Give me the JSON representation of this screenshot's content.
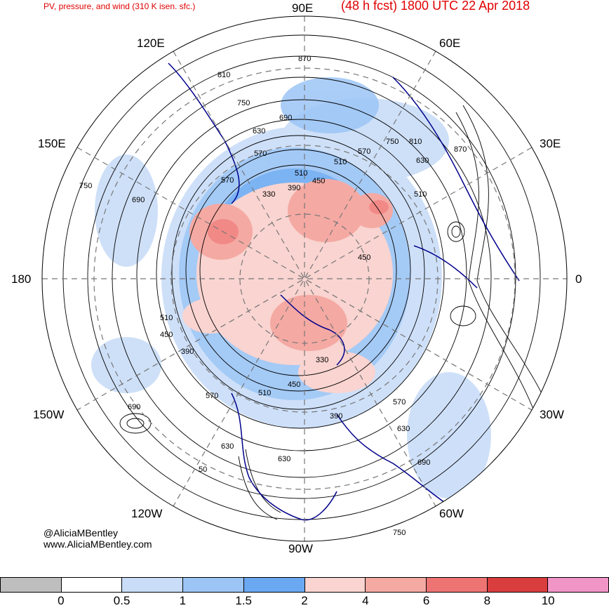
{
  "header": {
    "left_title": "PV, pressure, and wind (310 K isen. sfc.)",
    "right_title": "(48 h fcst) 1800 UTC 22 Apr 2018"
  },
  "longitude_labels": {
    "n90e": "90E",
    "e120": "120E",
    "e60": "60E",
    "e150": "150E",
    "e30": "30E",
    "w180": "180",
    "zero": "0",
    "w150": "150W",
    "w30": "30W",
    "w120": "120W",
    "w60": "60W",
    "w90": "90W"
  },
  "credits": {
    "handle": "@AliciaMBentley",
    "website": "www.AliciaMBentley.com"
  },
  "contour_labels": [
    "870",
    "810",
    "750",
    "690",
    "630",
    "570",
    "510",
    "450",
    "390",
    "330",
    "750",
    "690",
    "510",
    "450",
    "390",
    "570",
    "630",
    "690",
    "750",
    "630",
    "690",
    "570",
    "510",
    "630",
    "870",
    "810",
    "750",
    "630",
    "570",
    "510",
    "450",
    "390",
    "330",
    "510",
    "450",
    "570",
    "50"
  ],
  "colorbar": {
    "colors": [
      "#bebebe",
      "#ffffff",
      "#c9ddf8",
      "#9cc5f6",
      "#6aa9f2",
      "#f9d4d0",
      "#f5a9a3",
      "#ee7474",
      "#d93d3d",
      "#f195c7"
    ],
    "ticks": [
      "0",
      "0.5",
      "1",
      "1.5",
      "2",
      "4",
      "6",
      "8",
      "10"
    ]
  }
}
